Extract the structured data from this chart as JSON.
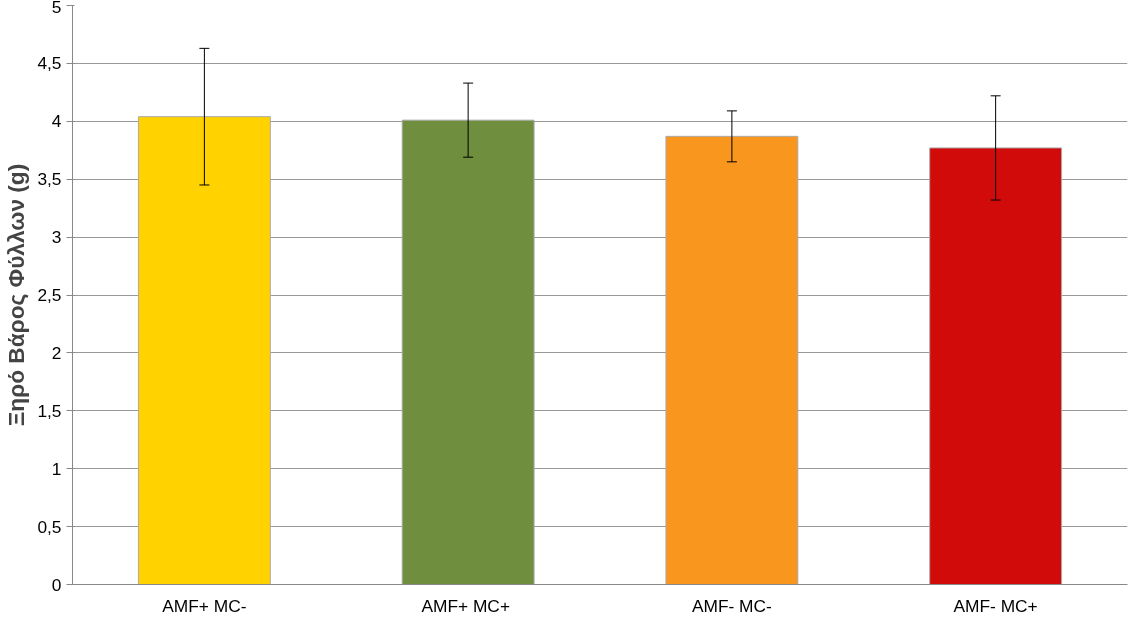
{
  "chart_data": {
    "type": "bar",
    "ylabel": "Ξηρό Βάρος Φύλλων (g)",
    "categories": [
      "AMF+ MC-",
      "AMF+  MC+",
      "AMF- MC-",
      "AMF- MC+"
    ],
    "values": [
      4.04,
      4.01,
      3.87,
      3.77
    ],
    "errors": [
      0.59,
      0.32,
      0.22,
      0.45
    ],
    "colors": [
      "#ffd200",
      "#6f8f3e",
      "#f8961e",
      "#d10a0a"
    ],
    "ylim": [
      0,
      5
    ],
    "yticks": [
      0,
      {
        "value": 0.5,
        "label": "0,5"
      },
      1,
      {
        "value": 1.5,
        "label": "1,5"
      },
      2,
      {
        "value": 2.5,
        "label": "2,5"
      },
      3,
      {
        "value": 3.5,
        "label": "3,5"
      },
      4,
      {
        "value": 4.5,
        "label": "4,5"
      },
      5
    ],
    "grid": "y"
  }
}
